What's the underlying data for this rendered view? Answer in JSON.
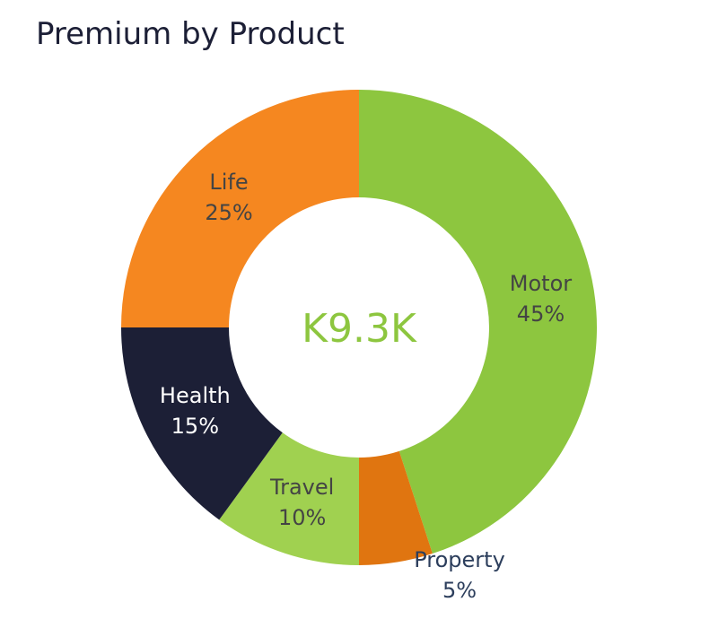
{
  "chart_data": {
    "type": "pie",
    "variant": "donut",
    "title": "Premium by Product",
    "center_label": "K9.3K",
    "center_label_color": "#8dc63f",
    "start": "top",
    "direction": "clockwise",
    "slices": [
      {
        "name": "Motor",
        "value": 45,
        "label": "45%",
        "color": "#8dc63f",
        "text_color": "#444444"
      },
      {
        "name": "Property",
        "value": 5,
        "label": "5%",
        "color": "#e07510",
        "text_color": "#2c3e5c",
        "outside": true
      },
      {
        "name": "Travel",
        "value": 10,
        "label": "10%",
        "color": "#a0d150",
        "text_color": "#444444"
      },
      {
        "name": "Health",
        "value": 15,
        "label": "15%",
        "color": "#1c1f36",
        "text_color": "#ffffff"
      },
      {
        "name": "Life",
        "value": 25,
        "label": "25%",
        "color": "#f58720",
        "text_color": "#444444"
      }
    ]
  }
}
